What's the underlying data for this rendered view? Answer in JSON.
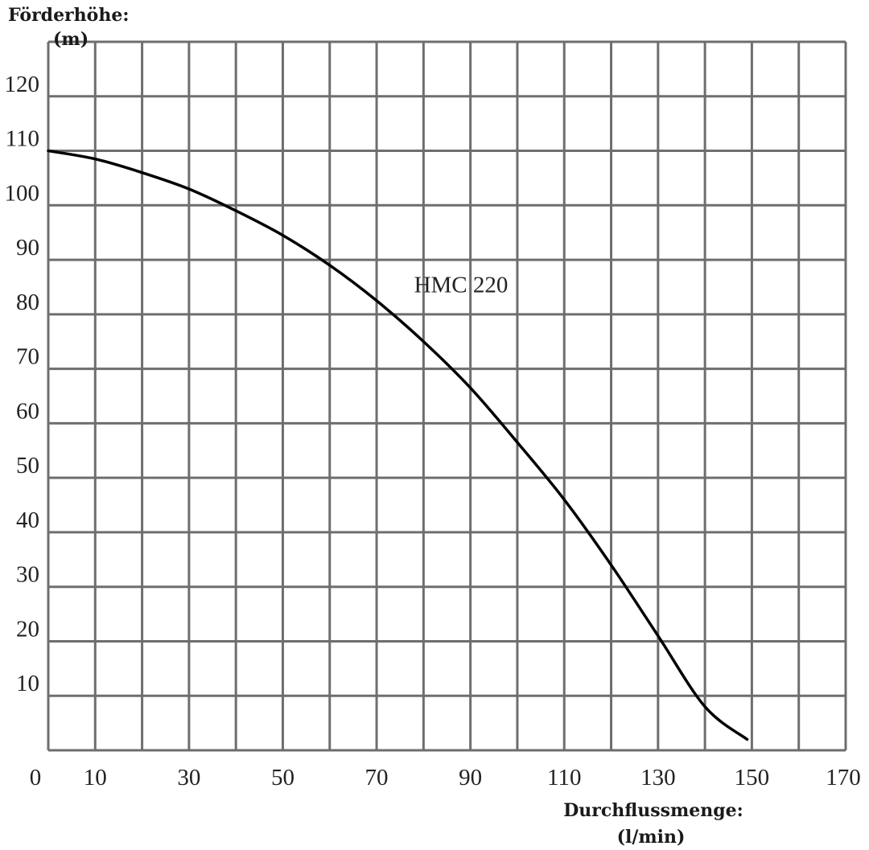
{
  "chart_data": {
    "type": "line",
    "ylabel": [
      "Förderhöhe:",
      "(m)"
    ],
    "xlabel": [
      "Durchflussmenge:",
      "(l/min)"
    ],
    "xlim": [
      0,
      170
    ],
    "ylim": [
      0,
      130
    ],
    "grid": true,
    "x_ticks": [
      "0",
      "10",
      "30",
      "50",
      "70",
      "90",
      "110",
      "130",
      "150",
      "170"
    ],
    "x_tick_values": [
      0,
      10,
      30,
      50,
      70,
      90,
      110,
      130,
      150,
      170
    ],
    "y_ticks": [
      "120",
      "110",
      "100",
      "90",
      "80",
      "70",
      "60",
      "50",
      "40",
      "30",
      "20",
      "10"
    ],
    "y_tick_values": [
      120,
      110,
      100,
      90,
      80,
      70,
      60,
      50,
      40,
      30,
      20,
      10
    ],
    "series": [
      {
        "name": "HMC 220",
        "x": [
          0,
          10,
          20,
          30,
          40,
          50,
          60,
          70,
          80,
          90,
          100,
          110,
          120,
          130,
          140,
          149
        ],
        "y": [
          110,
          108.5,
          106,
          103,
          99,
          94.5,
          89,
          82.5,
          75,
          66.5,
          56.5,
          46,
          34,
          21,
          8,
          2
        ]
      }
    ],
    "series_label_at": {
      "x": 88,
      "y": 84
    }
  }
}
